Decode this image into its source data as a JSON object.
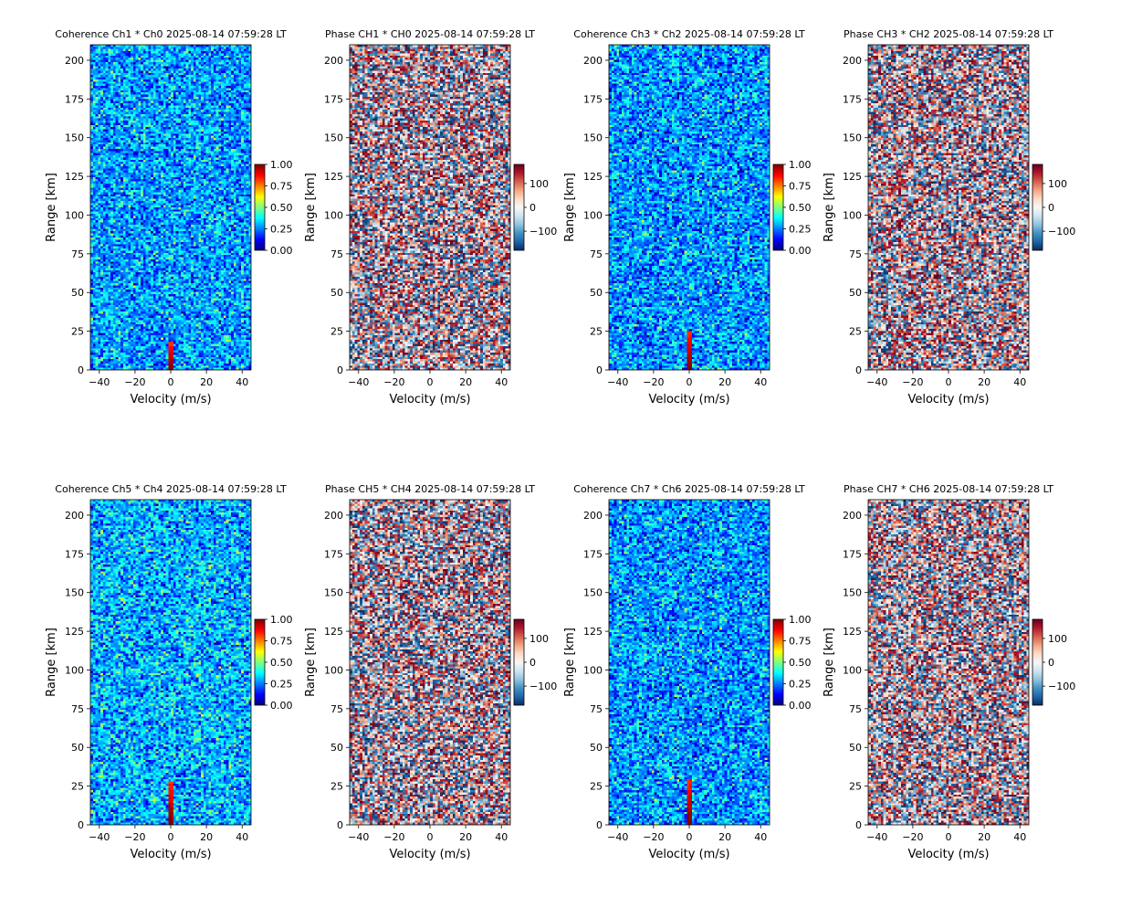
{
  "chart_data": [
    {
      "type": "heatmap",
      "title": "Coherence Ch1 * Ch0 2025-08-14 07:59:28 LT",
      "xlabel": "Velocity (m/s)",
      "ylabel": "Range [km]",
      "xlim": [
        -45,
        45
      ],
      "ylim": [
        0,
        210
      ],
      "xticks": [
        -40,
        -20,
        0,
        20,
        40
      ],
      "xtick_labels": [
        "−40",
        "−20",
        "0",
        "20",
        "40"
      ],
      "yticks": [
        0,
        25,
        50,
        75,
        100,
        125,
        150,
        175,
        200
      ],
      "ytick_labels": [
        "0",
        "25",
        "50",
        "75",
        "100",
        "125",
        "150",
        "175",
        "200"
      ],
      "colormap": "jet",
      "clim": [
        0,
        1
      ],
      "colorbar_ticks": [
        0,
        0.25,
        0.5,
        0.75,
        1
      ],
      "colorbar_labels": [
        "0.00",
        "0.25",
        "0.50",
        "0.75",
        "1.00"
      ],
      "field_mean": 0.28,
      "field_spread": 0.15,
      "zero_velocity_peak_top_km": 18
    },
    {
      "type": "heatmap",
      "title": "Phase CH1 * CH0 2025-08-14 07:59:28 LT",
      "xlabel": "Velocity (m/s)",
      "ylabel": "Range [km]",
      "xlim": [
        -45,
        45
      ],
      "ylim": [
        0,
        210
      ],
      "xticks": [
        -40,
        -20,
        0,
        20,
        40
      ],
      "xtick_labels": [
        "−40",
        "−20",
        "0",
        "20",
        "40"
      ],
      "yticks": [
        0,
        25,
        50,
        75,
        100,
        125,
        150,
        175,
        200
      ],
      "ytick_labels": [
        "0",
        "25",
        "50",
        "75",
        "100",
        "125",
        "150",
        "175",
        "200"
      ],
      "colormap": "RdBu_r",
      "clim": [
        -180,
        180
      ],
      "colorbar_ticks": [
        -100,
        0,
        100
      ],
      "colorbar_labels": [
        "−100",
        "0",
        "100"
      ]
    },
    {
      "type": "heatmap",
      "title": "Coherence Ch3 * Ch2 2025-08-14 07:59:28 LT",
      "xlabel": "Velocity (m/s)",
      "ylabel": "Range [km]",
      "xlim": [
        -45,
        45
      ],
      "ylim": [
        0,
        210
      ],
      "xticks": [
        -40,
        -20,
        0,
        20,
        40
      ],
      "xtick_labels": [
        "−40",
        "−20",
        "0",
        "20",
        "40"
      ],
      "yticks": [
        0,
        25,
        50,
        75,
        100,
        125,
        150,
        175,
        200
      ],
      "ytick_labels": [
        "0",
        "25",
        "50",
        "75",
        "100",
        "125",
        "150",
        "175",
        "200"
      ],
      "colormap": "jet",
      "clim": [
        0,
        1
      ],
      "colorbar_ticks": [
        0,
        0.25,
        0.5,
        0.75,
        1
      ],
      "colorbar_labels": [
        "0.00",
        "0.25",
        "0.50",
        "0.75",
        "1.00"
      ],
      "field_mean": 0.27,
      "field_spread": 0.15,
      "zero_velocity_peak_top_km": 25
    },
    {
      "type": "heatmap",
      "title": "Phase CH3 * CH2 2025-08-14 07:59:28 LT",
      "xlabel": "Velocity (m/s)",
      "ylabel": "Range [km]",
      "xlim": [
        -45,
        45
      ],
      "ylim": [
        0,
        210
      ],
      "xticks": [
        -40,
        -20,
        0,
        20,
        40
      ],
      "xtick_labels": [
        "−40",
        "−20",
        "0",
        "20",
        "40"
      ],
      "yticks": [
        0,
        25,
        50,
        75,
        100,
        125,
        150,
        175,
        200
      ],
      "ytick_labels": [
        "0",
        "25",
        "50",
        "75",
        "100",
        "125",
        "150",
        "175",
        "200"
      ],
      "colormap": "RdBu_r",
      "clim": [
        -180,
        180
      ],
      "colorbar_ticks": [
        -100,
        0,
        100
      ],
      "colorbar_labels": [
        "−100",
        "0",
        "100"
      ]
    },
    {
      "type": "heatmap",
      "title": "Coherence Ch5 * Ch4 2025-08-14 07:59:28 LT",
      "xlabel": "Velocity (m/s)",
      "ylabel": "Range [km]",
      "xlim": [
        -45,
        45
      ],
      "ylim": [
        0,
        210
      ],
      "xticks": [
        -40,
        -20,
        0,
        20,
        40
      ],
      "xtick_labels": [
        "−40",
        "−20",
        "0",
        "20",
        "40"
      ],
      "yticks": [
        0,
        25,
        50,
        75,
        100,
        125,
        150,
        175,
        200
      ],
      "ytick_labels": [
        "0",
        "25",
        "50",
        "75",
        "100",
        "125",
        "150",
        "175",
        "200"
      ],
      "colormap": "jet",
      "clim": [
        0,
        1
      ],
      "colorbar_ticks": [
        0,
        0.25,
        0.5,
        0.75,
        1
      ],
      "colorbar_labels": [
        "0.00",
        "0.25",
        "0.50",
        "0.75",
        "1.00"
      ],
      "field_mean": 0.3,
      "field_spread": 0.15,
      "zero_velocity_peak_top_km": 28
    },
    {
      "type": "heatmap",
      "title": "Phase CH5 * CH4 2025-08-14 07:59:28 LT",
      "xlabel": "Velocity (m/s)",
      "ylabel": "Range [km]",
      "xlim": [
        -45,
        45
      ],
      "ylim": [
        0,
        210
      ],
      "xticks": [
        -40,
        -20,
        0,
        20,
        40
      ],
      "xtick_labels": [
        "−40",
        "−20",
        "0",
        "20",
        "40"
      ],
      "yticks": [
        0,
        25,
        50,
        75,
        100,
        125,
        150,
        175,
        200
      ],
      "ytick_labels": [
        "0",
        "25",
        "50",
        "75",
        "100",
        "125",
        "150",
        "175",
        "200"
      ],
      "colormap": "RdBu_r",
      "clim": [
        -180,
        180
      ],
      "colorbar_ticks": [
        -100,
        0,
        100
      ],
      "colorbar_labels": [
        "−100",
        "0",
        "100"
      ]
    },
    {
      "type": "heatmap",
      "title": "Coherence Ch7 * Ch6 2025-08-14 07:59:28 LT",
      "xlabel": "Velocity (m/s)",
      "ylabel": "Range [km]",
      "xlim": [
        -45,
        45
      ],
      "ylim": [
        0,
        210
      ],
      "xticks": [
        -40,
        -20,
        0,
        20,
        40
      ],
      "xtick_labels": [
        "−40",
        "−20",
        "0",
        "20",
        "40"
      ],
      "yticks": [
        0,
        25,
        50,
        75,
        100,
        125,
        150,
        175,
        200
      ],
      "ytick_labels": [
        "0",
        "25",
        "50",
        "75",
        "100",
        "125",
        "150",
        "175",
        "200"
      ],
      "colormap": "jet",
      "clim": [
        0,
        1
      ],
      "colorbar_ticks": [
        0,
        0.25,
        0.5,
        0.75,
        1
      ],
      "colorbar_labels": [
        "0.00",
        "0.25",
        "0.50",
        "0.75",
        "1.00"
      ],
      "field_mean": 0.27,
      "field_spread": 0.15,
      "zero_velocity_peak_top_km": 30
    },
    {
      "type": "heatmap",
      "title": "Phase CH7 * CH6 2025-08-14 07:59:28 LT",
      "xlabel": "Velocity (m/s)",
      "ylabel": "Range [km]",
      "xlim": [
        -45,
        45
      ],
      "ylim": [
        0,
        210
      ],
      "xticks": [
        -40,
        -20,
        0,
        20,
        40
      ],
      "xtick_labels": [
        "−40",
        "−20",
        "0",
        "20",
        "40"
      ],
      "yticks": [
        0,
        25,
        50,
        75,
        100,
        125,
        150,
        175,
        200
      ],
      "ytick_labels": [
        "0",
        "25",
        "50",
        "75",
        "100",
        "125",
        "150",
        "175",
        "200"
      ],
      "colormap": "RdBu_r",
      "clim": [
        -180,
        180
      ],
      "colorbar_ticks": [
        -100,
        0,
        100
      ],
      "colorbar_labels": [
        "−100",
        "0",
        "100"
      ]
    }
  ]
}
